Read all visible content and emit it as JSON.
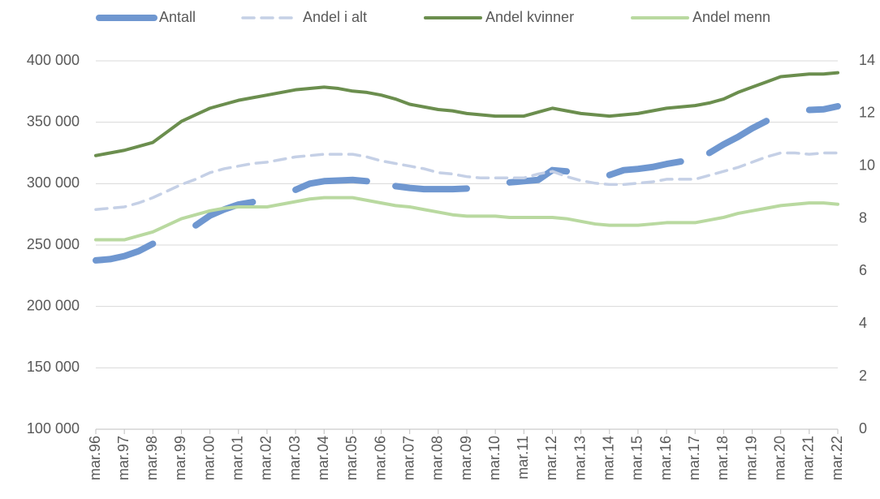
{
  "chart_data": {
    "type": "line",
    "categories": [
      "mar.96",
      null,
      "mar.97",
      null,
      "mar.98",
      null,
      "mar.99",
      null,
      "mar.00",
      null,
      "mar.01",
      null,
      "mar.02",
      null,
      "mar.03",
      null,
      "mar.04",
      null,
      "mar.05",
      null,
      "mar.06",
      null,
      "mar.07",
      null,
      "mar.08",
      null,
      "mar.09",
      null,
      "mar.10",
      null,
      "mar.11",
      null,
      "mar.12",
      null,
      "mar.13",
      null,
      "mar.14",
      null,
      "mar.15",
      null,
      "mar.16",
      null,
      "mar.17",
      null,
      "mar.18",
      null,
      "mar.19",
      null,
      "mar.20",
      null,
      "mar.21",
      null,
      "mar.22"
    ],
    "series": [
      {
        "name": "Antall",
        "color": "#6f97d0",
        "dash": false,
        "width": 8,
        "values": [
          237500,
          238500,
          241000,
          245000,
          251000,
          null,
          null,
          266000,
          274000,
          279000,
          283000,
          285000,
          null,
          null,
          295000,
          300000,
          302000,
          302500,
          303000,
          302000,
          null,
          298000,
          296500,
          295500,
          295500,
          295500,
          296000,
          null,
          null,
          301000,
          302000,
          303000,
          311000,
          310000,
          null,
          null,
          307000,
          311000,
          312000,
          313500,
          316000,
          318000,
          null,
          325000,
          332000,
          338000,
          345000,
          351000,
          null,
          null,
          360000,
          360500,
          363000
        ]
      },
      {
        "name": "Andel i alt",
        "color": "#c5d0e6",
        "dash": true,
        "width": 3.5,
        "axis": "y2",
        "values": [
          8.35,
          8.4,
          8.45,
          8.6,
          8.8,
          9.05,
          9.3,
          9.5,
          9.75,
          9.9,
          10.0,
          10.1,
          10.15,
          10.25,
          10.35,
          10.4,
          10.45,
          10.45,
          10.45,
          10.35,
          10.2,
          10.1,
          10.0,
          9.9,
          9.75,
          9.7,
          9.6,
          9.55,
          9.55,
          9.55,
          9.55,
          9.7,
          9.8,
          9.6,
          9.45,
          9.35,
          9.3,
          9.3,
          9.35,
          9.4,
          9.5,
          9.5,
          9.5,
          9.65,
          9.8,
          9.95,
          10.15,
          10.35,
          10.5,
          10.5,
          10.45,
          10.5,
          10.5
        ]
      },
      {
        "name": "Andel kvinner",
        "color": "#6b8e4e",
        "dash": false,
        "width": 4,
        "axis": "y2",
        "values": [
          10.4,
          10.5,
          10.6,
          10.75,
          10.9,
          11.3,
          11.7,
          11.95,
          12.2,
          12.35,
          12.5,
          12.6,
          12.7,
          12.8,
          12.9,
          12.95,
          13.0,
          12.95,
          12.85,
          12.8,
          12.7,
          12.55,
          12.35,
          12.25,
          12.15,
          12.1,
          12.0,
          11.95,
          11.9,
          11.9,
          11.9,
          12.05,
          12.2,
          12.1,
          12.0,
          11.95,
          11.9,
          11.95,
          12.0,
          12.1,
          12.2,
          12.25,
          12.3,
          12.4,
          12.55,
          12.8,
          13.0,
          13.2,
          13.4,
          13.45,
          13.5,
          13.5,
          13.55
        ]
      },
      {
        "name": "Andel menn",
        "color": "#b9d9a0",
        "dash": false,
        "width": 4,
        "axis": "y2",
        "values": [
          7.2,
          7.2,
          7.2,
          7.35,
          7.5,
          7.75,
          8.0,
          8.15,
          8.3,
          8.4,
          8.45,
          8.45,
          8.45,
          8.55,
          8.65,
          8.75,
          8.8,
          8.8,
          8.8,
          8.7,
          8.6,
          8.5,
          8.45,
          8.35,
          8.25,
          8.15,
          8.1,
          8.1,
          8.1,
          8.05,
          8.05,
          8.05,
          8.05,
          8.0,
          7.9,
          7.8,
          7.75,
          7.75,
          7.75,
          7.8,
          7.85,
          7.85,
          7.85,
          7.95,
          8.05,
          8.2,
          8.3,
          8.4,
          8.5,
          8.55,
          8.6,
          8.6,
          8.55
        ]
      }
    ],
    "ylim": [
      100000,
      400000
    ],
    "yticks": [
      {
        "value": 100000,
        "label": "100 000"
      },
      {
        "value": 150000,
        "label": "150 000"
      },
      {
        "value": 200000,
        "label": "200 000"
      },
      {
        "value": 250000,
        "label": "250 000"
      },
      {
        "value": 300000,
        "label": "300 000"
      },
      {
        "value": 350000,
        "label": "350 000"
      },
      {
        "value": 400000,
        "label": "400 000"
      }
    ],
    "y2lim": [
      0,
      14
    ],
    "y2ticks": [
      0,
      2,
      4,
      6,
      8,
      10,
      12,
      14
    ],
    "grid": true,
    "legend": "top"
  }
}
